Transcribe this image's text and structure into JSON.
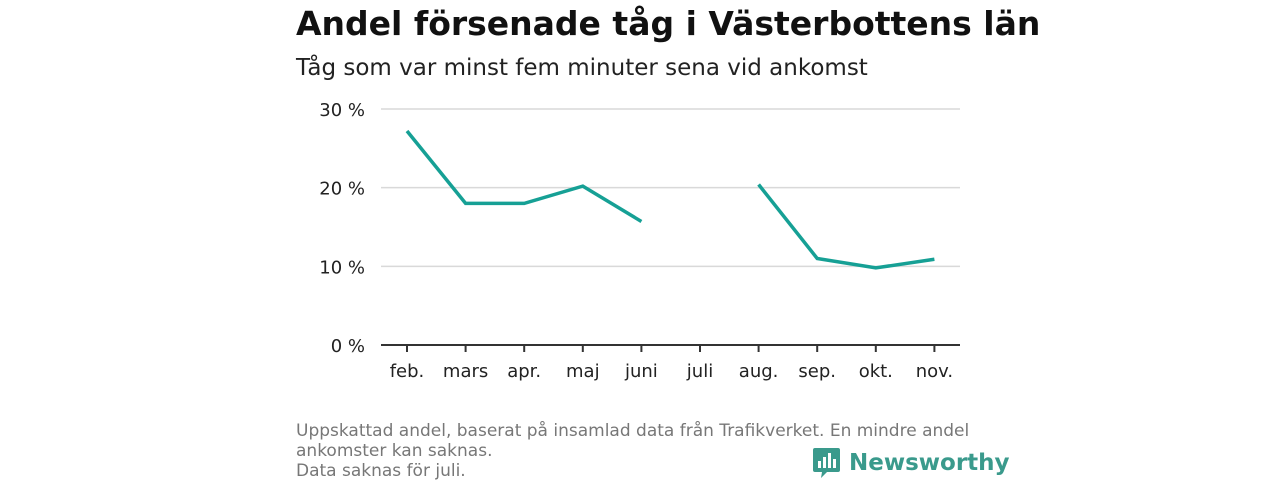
{
  "header": {
    "title": "Andel försenade tåg i Västerbottens län",
    "subtitle": "Tåg som var minst fem minuter sena vid ankomst"
  },
  "chart_data": {
    "type": "line",
    "title": "Andel försenade tåg i Västerbottens län",
    "subtitle": "Tåg som var minst fem minuter sena vid ankomst",
    "categories": [
      "feb.",
      "mars",
      "apr.",
      "maj",
      "juni",
      "juli",
      "aug.",
      "sep.",
      "okt.",
      "nov."
    ],
    "series": [
      {
        "values": [
          27.2,
          18.0,
          18.0,
          20.2,
          15.7,
          null,
          20.4,
          11.0,
          9.8,
          10.9
        ]
      }
    ],
    "yticks": [
      0,
      10,
      20,
      30
    ],
    "ytick_labels": [
      "0 %",
      "10 %",
      "20 %",
      "30 %"
    ],
    "ylim": [
      0,
      30
    ],
    "grid": true,
    "line_color": "#16a095",
    "xlabel": "",
    "ylabel": ""
  },
  "footnote": {
    "line1": "Uppskattad andel, baserat på insamlad data från Trafikverket. En mindre andel",
    "line2": "ankomster kan saknas.",
    "line3": "Data saknas för juli."
  },
  "brand": {
    "name": "Newsworthy",
    "icon": "newsworthy-logo-icon",
    "color": "#3a9a8c"
  }
}
